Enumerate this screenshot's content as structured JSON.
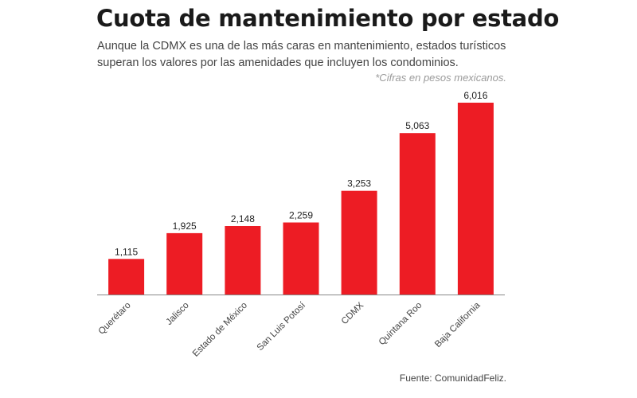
{
  "header": {
    "title": "Cuota de mantenimiento por estado",
    "subtitle": "Aunque la CDMX es una de las más caras en mantenimiento, estados turísticos superan los valores por las amenidades que incluyen los condominios.",
    "note": "*Cifras en pesos mexicanos."
  },
  "footer": {
    "source": "Fuente: ComunidadFeliz."
  },
  "colors": {
    "bar": "#ed1c24",
    "axis": "#888888"
  },
  "chart_data": {
    "type": "bar",
    "title": "Cuota de mantenimiento por estado",
    "xlabel": "",
    "ylabel": "",
    "categories": [
      "Querétaro",
      "Jalisco",
      "Estado de México",
      "San Luis Potosí",
      "CDMX",
      "Quintana Roo",
      "Baja California"
    ],
    "values": [
      1115,
      1925,
      2148,
      2259,
      3253,
      5063,
      6016
    ],
    "value_labels": [
      "1,115",
      "1,925",
      "2,148",
      "2,259",
      "3,253",
      "5,063",
      "6,016"
    ],
    "ylim": [
      0,
      6016
    ],
    "grid": false,
    "legend": "none",
    "units": "pesos mexicanos"
  }
}
